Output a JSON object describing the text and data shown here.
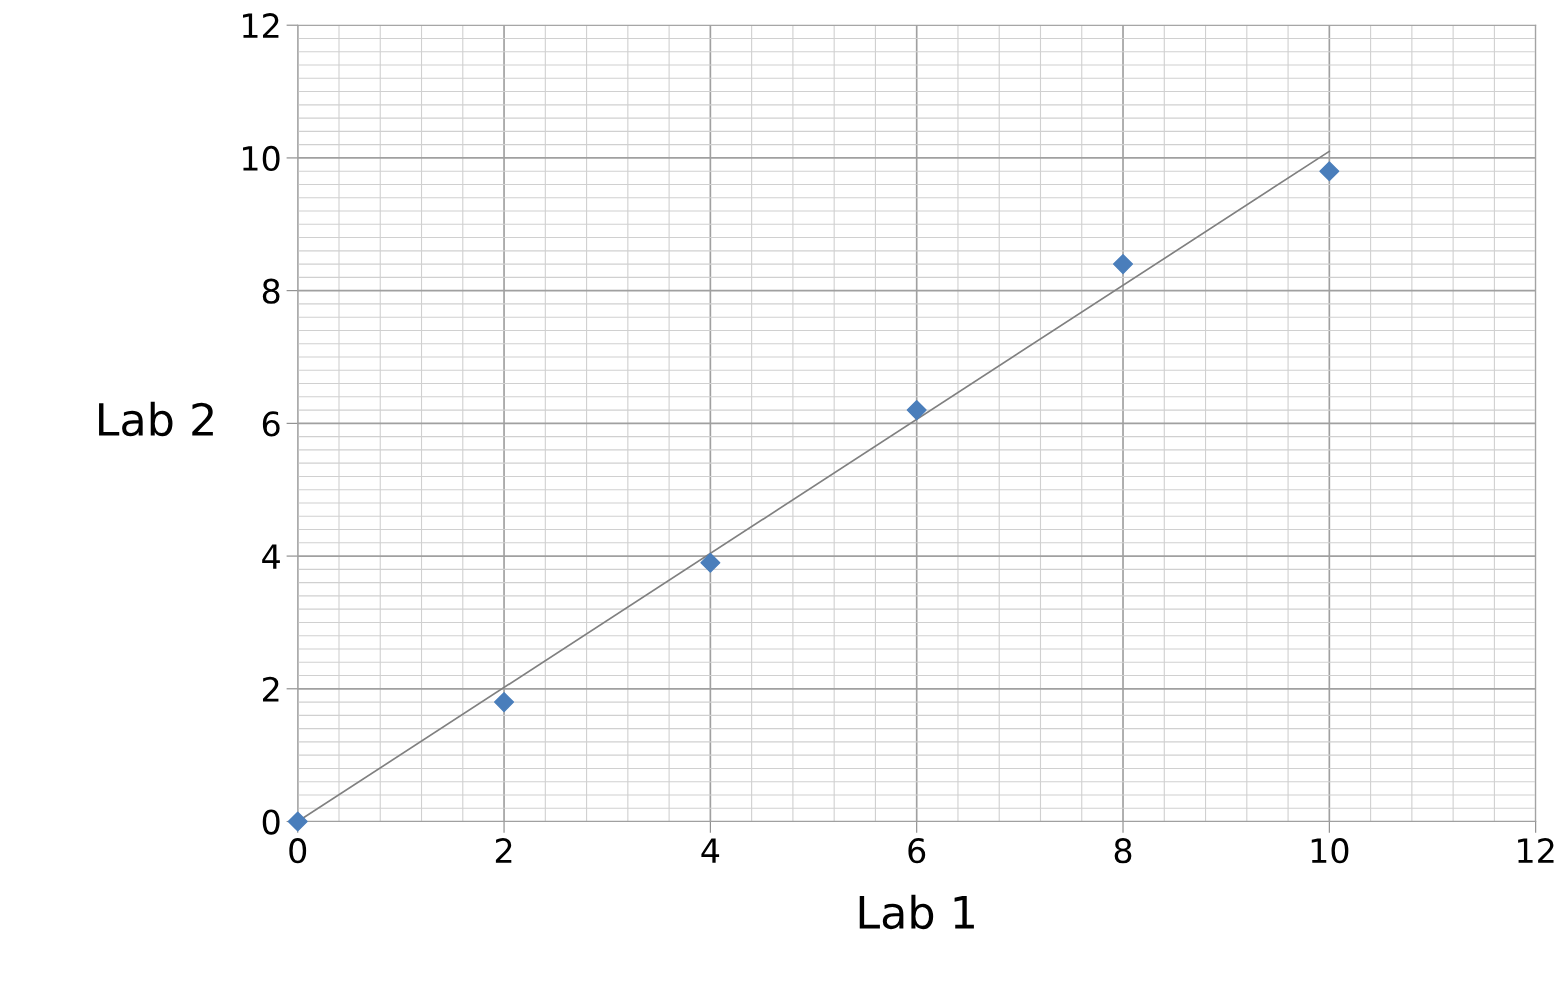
{
  "chart_data": {
    "type": "scatter",
    "xlabel": "Lab 1",
    "ylabel": "Lab 2",
    "xlim": [
      0,
      12
    ],
    "ylim": [
      0,
      12
    ],
    "xticks": [
      0,
      2,
      4,
      6,
      8,
      10,
      12
    ],
    "yticks": [
      0,
      2,
      4,
      6,
      8,
      10,
      12
    ],
    "grid": true,
    "marker": "diamond",
    "series": [
      {
        "color": "#4a7ebb",
        "x": [
          0,
          2,
          4,
          6,
          8,
          10
        ],
        "values": [
          0,
          1.8,
          3.9,
          6.2,
          8.4,
          9.8
        ]
      },
      {
        "type": "line",
        "color": "#808080",
        "marker": "none",
        "x": [
          0,
          10
        ],
        "values": [
          0,
          10.1
        ]
      }
    ]
  }
}
